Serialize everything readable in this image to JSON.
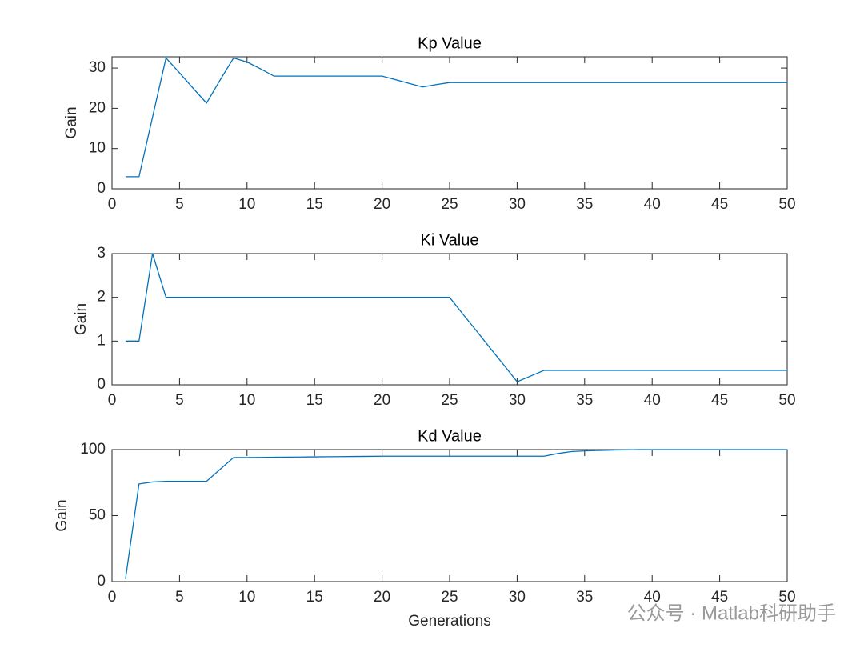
{
  "chart_data": [
    {
      "type": "line",
      "title": "Kp Value",
      "ylabel": "Gain",
      "x": [
        1,
        2,
        3,
        4,
        5,
        6,
        7,
        8,
        9,
        10,
        11,
        12,
        13,
        14,
        15,
        16,
        17,
        18,
        19,
        20,
        21,
        22,
        23,
        24,
        25,
        26,
        27,
        28,
        29,
        30,
        31,
        32,
        33,
        34,
        35,
        36,
        37,
        38,
        39,
        40,
        41,
        42,
        43,
        44,
        45,
        46,
        47,
        48,
        49,
        50
      ],
      "series": [
        {
          "color": "#0072bd",
          "values": [
            3,
            3,
            17.8,
            32.5,
            28.8,
            25,
            21.3,
            27,
            32.5,
            31.5,
            29.8,
            28,
            28,
            28,
            28,
            28,
            28,
            28,
            28,
            28,
            27.1,
            26.2,
            25.3,
            25.9,
            26.4,
            26.4,
            26.4,
            26.4,
            26.4,
            26.4,
            26.4,
            26.4,
            26.4,
            26.4,
            26.4,
            26.4,
            26.4,
            26.4,
            26.4,
            26.4,
            26.4,
            26.4,
            26.4,
            26.4,
            26.4,
            26.4,
            26.4,
            26.4,
            26.4,
            26.4
          ]
        }
      ],
      "xlim": [
        0,
        50
      ],
      "xticks": [
        0,
        5,
        10,
        15,
        20,
        25,
        30,
        35,
        40,
        45,
        50
      ],
      "ylim": [
        0,
        32.8
      ],
      "yticks": [
        0,
        10,
        20,
        30
      ]
    },
    {
      "type": "line",
      "title": "Ki Value",
      "ylabel": "Gain",
      "x": [
        1,
        2,
        3,
        4,
        5,
        6,
        7,
        8,
        9,
        10,
        11,
        12,
        13,
        14,
        15,
        16,
        17,
        18,
        19,
        20,
        21,
        22,
        23,
        24,
        25,
        26,
        27,
        28,
        29,
        30,
        31,
        32,
        33,
        34,
        35,
        36,
        37,
        38,
        39,
        40,
        41,
        42,
        43,
        44,
        45,
        46,
        47,
        48,
        49,
        50
      ],
      "series": [
        {
          "color": "#0072bd",
          "values": [
            1,
            1,
            3,
            2,
            2,
            2,
            2,
            2,
            2,
            2,
            2,
            2,
            2,
            2,
            2,
            2,
            2,
            2,
            2,
            2,
            2,
            2,
            2,
            2,
            2,
            1.61,
            1.23,
            0.84,
            0.46,
            0.07,
            0.2,
            0.33,
            0.33,
            0.33,
            0.33,
            0.33,
            0.33,
            0.33,
            0.33,
            0.33,
            0.33,
            0.33,
            0.33,
            0.33,
            0.33,
            0.33,
            0.33,
            0.33,
            0.33,
            0.33
          ]
        }
      ],
      "xlim": [
        0,
        50
      ],
      "xticks": [
        0,
        5,
        10,
        15,
        20,
        25,
        30,
        35,
        40,
        45,
        50
      ],
      "ylim": [
        0,
        3
      ],
      "yticks": [
        0,
        1,
        2,
        3
      ]
    },
    {
      "type": "line",
      "title": "Kd Value",
      "ylabel": "Gain",
      "xlabel": "Generations",
      "x": [
        1,
        2,
        3,
        4,
        5,
        6,
        7,
        8,
        9,
        10,
        11,
        12,
        13,
        14,
        15,
        16,
        17,
        18,
        19,
        20,
        21,
        22,
        23,
        24,
        25,
        26,
        27,
        28,
        29,
        30,
        31,
        32,
        33,
        34,
        35,
        36,
        37,
        38,
        39,
        40,
        41,
        42,
        43,
        44,
        45,
        46,
        47,
        48,
        49,
        50
      ],
      "series": [
        {
          "color": "#0072bd",
          "values": [
            2,
            74,
            75.5,
            76,
            76,
            76,
            76,
            85,
            94,
            94,
            94.1,
            94.2,
            94.3,
            94.4,
            94.5,
            94.6,
            94.7,
            94.8,
            94.9,
            95,
            95,
            95,
            95,
            95,
            95,
            95,
            95,
            95,
            95,
            95,
            95,
            95,
            97,
            98.5,
            99,
            99.3,
            99.6,
            99.8,
            100,
            100,
            100,
            100,
            100,
            100,
            100,
            100,
            100,
            100,
            100,
            100
          ]
        }
      ],
      "xlim": [
        0,
        50
      ],
      "xticks": [
        0,
        5,
        10,
        15,
        20,
        25,
        30,
        35,
        40,
        45,
        50
      ],
      "ylim": [
        0,
        100
      ],
      "yticks": [
        0,
        50,
        100
      ]
    }
  ],
  "watermark": "公众号 · Matlab科研助手"
}
